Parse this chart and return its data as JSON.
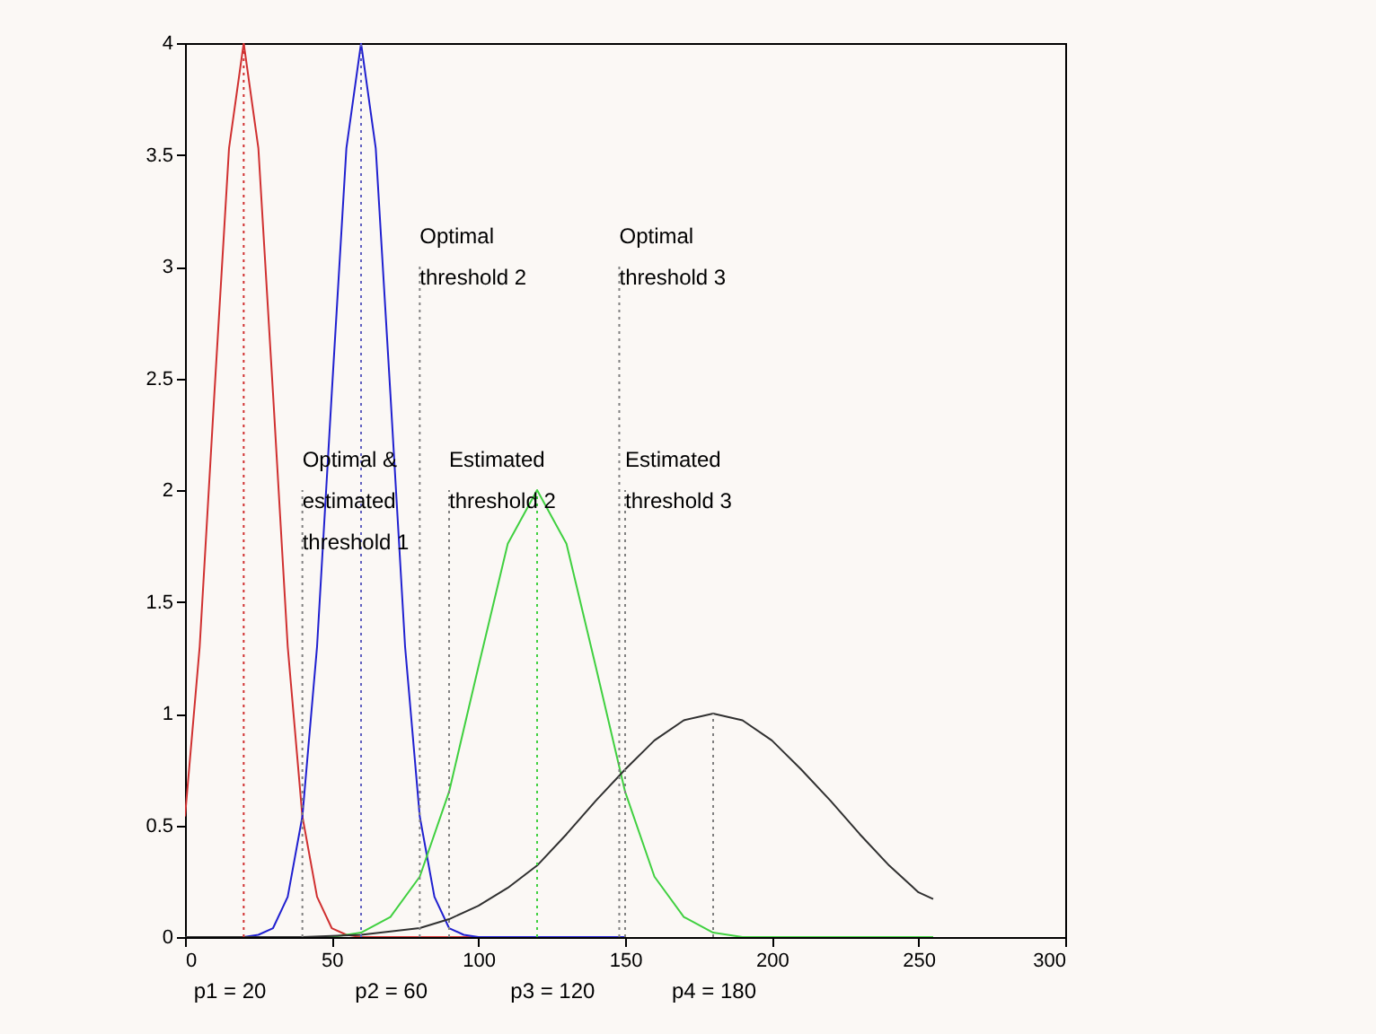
{
  "chart_data": {
    "type": "line",
    "xlim": [
      0,
      300
    ],
    "xticks": [
      0,
      50,
      100,
      150,
      200,
      250,
      300
    ],
    "ylim": [
      0,
      4
    ],
    "yticks": [
      0,
      0.5,
      1,
      1.5,
      2,
      2.5,
      3,
      3.5,
      4
    ],
    "grid": false,
    "marker": "none",
    "series": [
      {
        "color": "#d03030",
        "x": [
          0,
          5,
          10,
          15,
          20,
          25,
          30,
          35,
          40,
          45,
          50,
          55,
          60,
          150
        ],
        "values": [
          0.54,
          1.3,
          2.43,
          3.53,
          4,
          3.53,
          2.43,
          1.3,
          0.54,
          0.18,
          0.04,
          0.01,
          0,
          0
        ]
      },
      {
        "color": "#2020d0",
        "x": [
          0,
          20,
          25,
          30,
          35,
          40,
          45,
          50,
          55,
          60,
          65,
          70,
          75,
          80,
          85,
          90,
          95,
          100,
          150
        ],
        "values": [
          0,
          0,
          0.01,
          0.04,
          0.18,
          0.54,
          1.3,
          2.43,
          3.53,
          4,
          3.53,
          2.43,
          1.3,
          0.54,
          0.18,
          0.04,
          0.01,
          0,
          0
        ]
      },
      {
        "color": "#40d040",
        "x": [
          0,
          50,
          60,
          70,
          80,
          90,
          100,
          110,
          120,
          130,
          140,
          150,
          160,
          170,
          180,
          190,
          255
        ],
        "values": [
          0,
          0,
          0.02,
          0.09,
          0.27,
          0.65,
          1.21,
          1.76,
          2,
          1.76,
          1.21,
          0.65,
          0.27,
          0.09,
          0.02,
          0,
          0
        ]
      },
      {
        "color": "#303030",
        "x": [
          0,
          40,
          60,
          80,
          90,
          100,
          110,
          120,
          130,
          140,
          150,
          160,
          170,
          180,
          190,
          200,
          210,
          220,
          230,
          240,
          250,
          255
        ],
        "values": [
          0,
          0,
          0.01,
          0.04,
          0.08,
          0.14,
          0.22,
          0.32,
          0.46,
          0.61,
          0.75,
          0.88,
          0.97,
          1,
          0.97,
          0.88,
          0.75,
          0.61,
          0.46,
          0.32,
          0.2,
          0.17
        ]
      },
      {
        "color": "#d03030",
        "line_style": "dotted",
        "x": [
          20,
          20
        ],
        "values": [
          0,
          4
        ]
      },
      {
        "color": "#808080",
        "line_style": "dotted",
        "x": [
          40,
          40
        ],
        "values": [
          0,
          2
        ]
      },
      {
        "color": "#6060c0",
        "line_style": "dotted",
        "x": [
          60,
          60
        ],
        "values": [
          0,
          4
        ]
      },
      {
        "color": "#808080",
        "line_style": "dotted",
        "x": [
          80,
          80
        ],
        "values": [
          0,
          3
        ]
      },
      {
        "color": "#808080",
        "line_style": "dotted",
        "x": [
          90,
          90
        ],
        "values": [
          0,
          2
        ]
      },
      {
        "color": "#40d040",
        "line_style": "dotted",
        "x": [
          120,
          120
        ],
        "values": [
          0,
          2
        ]
      },
      {
        "color": "#808080",
        "line_style": "dotted",
        "x": [
          148,
          148
        ],
        "values": [
          0,
          3
        ]
      },
      {
        "color": "#808080",
        "line_style": "dotted",
        "x": [
          150,
          150
        ],
        "values": [
          0,
          2
        ]
      },
      {
        "color": "#808080",
        "line_style": "dotted",
        "x": [
          180,
          180
        ],
        "values": [
          0,
          1
        ]
      }
    ],
    "annotations": [
      {
        "text": "Optimal &\nestimated\nthreshold 1",
        "x": 40,
        "y": 2
      },
      {
        "text": "Optimal\nthreshold 2",
        "x": 80,
        "y": 3
      },
      {
        "text": "Estimated\nthreshold 2",
        "x": 90,
        "y": 2
      },
      {
        "text": "Optimal\nthreshold 3",
        "x": 148,
        "y": 3
      },
      {
        "text": "Estimated\nthreshold 3",
        "x": 150,
        "y": 2
      },
      "p1 = 20",
      "p2 = 60",
      "p3 = 120",
      "p4 = 180"
    ]
  }
}
